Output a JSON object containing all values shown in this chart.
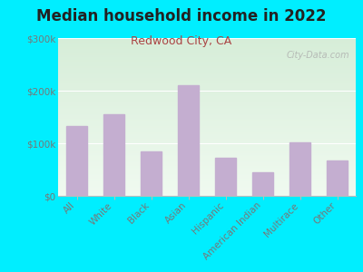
{
  "title": "Median household income in 2022",
  "subtitle": "Redwood City, CA",
  "categories": [
    "All",
    "White",
    "Black",
    "Asian",
    "Hispanic",
    "American Indian",
    "Multirace",
    "Other"
  ],
  "values": [
    132000,
    155000,
    85000,
    210000,
    72000,
    45000,
    102000,
    68000
  ],
  "bar_color": "#c4aed0",
  "background_outer": "#00eeff",
  "grad_top": "#d6edd8",
  "grad_bottom": "#f0faf0",
  "title_color": "#222222",
  "subtitle_color": "#aa4444",
  "tick_color": "#777777",
  "ylabel_ticks": [
    "$0",
    "$100k",
    "$200k",
    "$300k"
  ],
  "ylim": [
    0,
    300000
  ],
  "yticks": [
    0,
    100000,
    200000,
    300000
  ],
  "watermark": "City-Data.com",
  "title_fontsize": 12,
  "subtitle_fontsize": 9,
  "tick_fontsize": 7.5
}
